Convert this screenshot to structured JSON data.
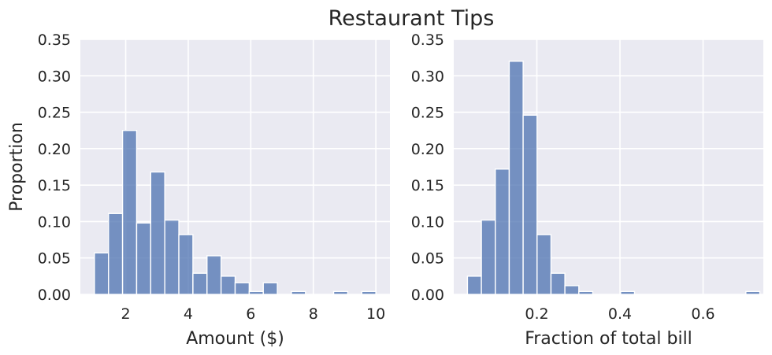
{
  "figure": {
    "title": "Restaurant Tips"
  },
  "colors": {
    "bar": "#4c72b0",
    "panel_bg": "#eaeaf2",
    "grid": "#ffffff"
  },
  "chart_data": [
    {
      "type": "histogram",
      "xlabel": "Amount ($)",
      "ylabel": "Proportion",
      "xlim": [
        0.55,
        10.45
      ],
      "ylim": [
        0,
        0.35
      ],
      "xticks": [
        2,
        4,
        6,
        8,
        10
      ],
      "xtick_labels": [
        "2",
        "4",
        "6",
        "8",
        "10"
      ],
      "yticks": [
        0,
        0.05,
        0.1,
        0.15,
        0.2,
        0.25,
        0.3,
        0.35
      ],
      "ytick_labels": [
        "0.00",
        "0.05",
        "0.10",
        "0.15",
        "0.20",
        "0.25",
        "0.30",
        "0.35"
      ],
      "grid": true,
      "bin_edges": [
        1.0,
        1.45,
        1.9,
        2.35,
        2.8,
        3.25,
        3.7,
        4.15,
        4.6,
        5.05,
        5.5,
        5.95,
        6.4,
        6.85,
        7.3,
        7.75,
        8.2,
        8.65,
        9.1,
        9.55,
        10.0
      ],
      "values": [
        0.057,
        0.111,
        0.225,
        0.098,
        0.168,
        0.102,
        0.082,
        0.029,
        0.053,
        0.025,
        0.016,
        0.004,
        0.016,
        0.0,
        0.004,
        0.0,
        0.0,
        0.004,
        0.0,
        0.004
      ]
    },
    {
      "type": "histogram",
      "xlabel": "Fraction of total bill",
      "ylabel": "",
      "xlim": [
        0.0,
        0.745
      ],
      "ylim": [
        0,
        0.35
      ],
      "xticks": [
        0.2,
        0.4,
        0.6
      ],
      "xtick_labels": [
        "0.2",
        "0.4",
        "0.6"
      ],
      "yticks": [
        0,
        0.05,
        0.1,
        0.15,
        0.2,
        0.25,
        0.3,
        0.35
      ],
      "ytick_labels": [
        "0.00",
        "0.05",
        "0.10",
        "0.15",
        "0.20",
        "0.25",
        "0.30",
        "0.35"
      ],
      "grid": true,
      "bin_edges": [
        0.033,
        0.0665,
        0.1,
        0.1335,
        0.167,
        0.2005,
        0.234,
        0.2675,
        0.301,
        0.3345,
        0.368,
        0.4015,
        0.435,
        0.4685,
        0.502,
        0.5355,
        0.569,
        0.6025,
        0.636,
        0.6695,
        0.703,
        0.7365
      ],
      "values": [
        0.025,
        0.102,
        0.172,
        0.32,
        0.246,
        0.082,
        0.029,
        0.012,
        0.004,
        0.0,
        0.0,
        0.004,
        0.0,
        0.0,
        0.0,
        0.0,
        0.0,
        0.0,
        0.0,
        0.0,
        0.004
      ]
    }
  ]
}
